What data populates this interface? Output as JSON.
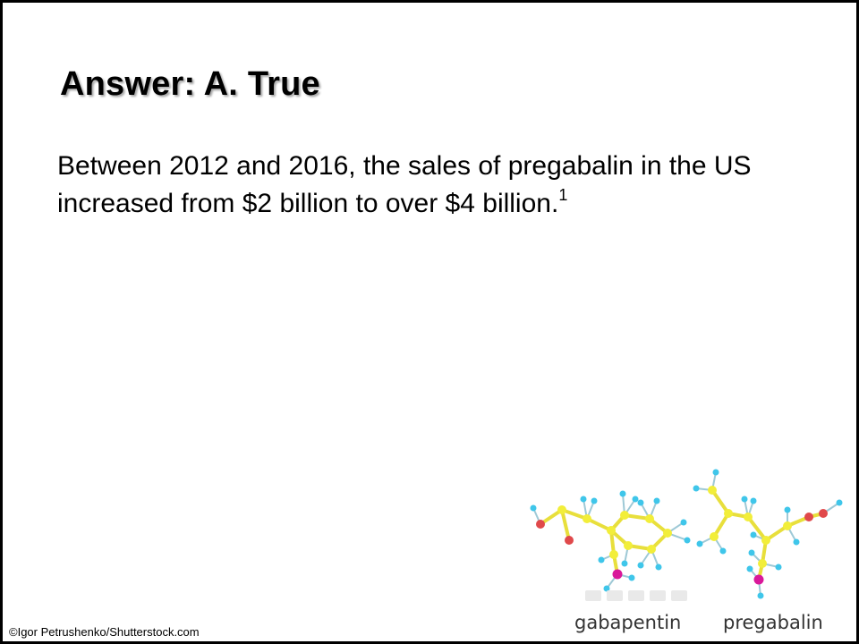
{
  "slide": {
    "title": "Answer: A. True",
    "body": {
      "text": "Between 2012 and 2016, the sales of pregabalin in the US increased from $2 billion to over $4 billion.",
      "footnote_ref": "1"
    }
  },
  "image": {
    "labels": {
      "left": "gabapentin",
      "right": "pregabalin"
    },
    "atom_colors": {
      "carbon": "#f2ee3a",
      "hydrogen": "#3fc6ea",
      "oxygen": "#e0494b",
      "nitrogen": "#d9189a"
    },
    "credit": "©Igor Petrushenko/Shutterstock.com"
  }
}
